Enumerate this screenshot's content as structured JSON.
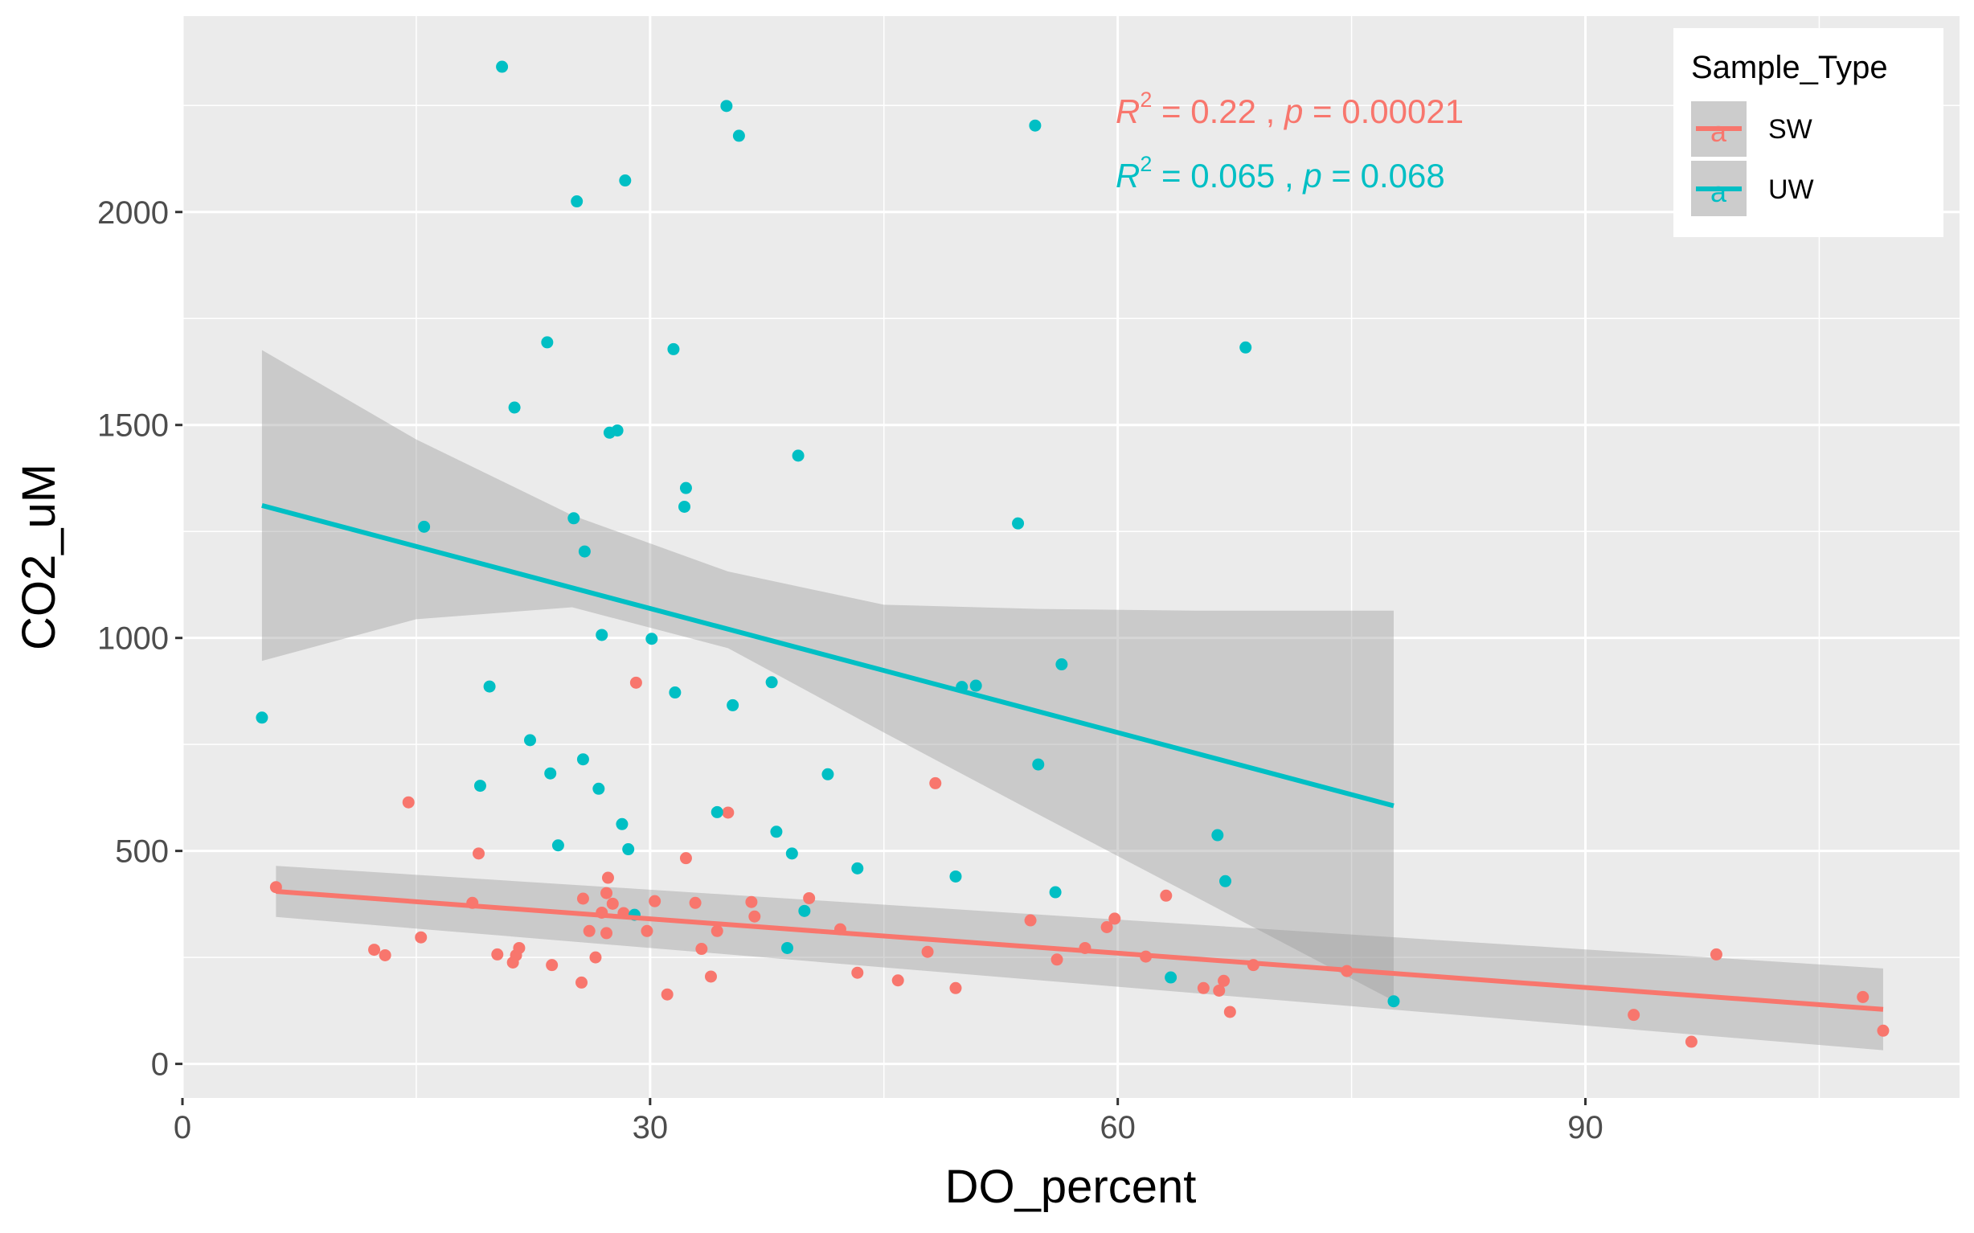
{
  "chart_data": {
    "type": "scatter",
    "xlabel": "DO_percent",
    "ylabel": "CO2_uM",
    "xlim": [
      0,
      114
    ],
    "ylim": [
      -80,
      2460
    ],
    "x_ticks": [
      0,
      30,
      60,
      90
    ],
    "y_ticks": [
      0,
      500,
      1000,
      1500,
      2000
    ],
    "x_tick_labels": [
      "0",
      "30",
      "60",
      "90"
    ],
    "y_tick_labels": [
      "0",
      "500",
      "1000",
      "1500",
      "2000"
    ],
    "grid": true,
    "legend": {
      "title": "Sample_Type",
      "placement": "top-right",
      "key_glyph": "a"
    },
    "series": [
      {
        "name": "SW",
        "color": "#F8766D",
        "points": [
          [
            6,
            415
          ],
          [
            12.3,
            268
          ],
          [
            13,
            255
          ],
          [
            14.5,
            614
          ],
          [
            15.3,
            297
          ],
          [
            18.6,
            378
          ],
          [
            19,
            494
          ],
          [
            20.2,
            257
          ],
          [
            21.2,
            238
          ],
          [
            21.4,
            255
          ],
          [
            21.6,
            272
          ],
          [
            23.7,
            232
          ],
          [
            25.6,
            191
          ],
          [
            25.7,
            388
          ],
          [
            26.1,
            312
          ],
          [
            26.5,
            250
          ],
          [
            26.9,
            355
          ],
          [
            27.2,
            307
          ],
          [
            27.2,
            401
          ],
          [
            27.3,
            437
          ],
          [
            27.6,
            376
          ],
          [
            28.3,
            354
          ],
          [
            29.1,
            895
          ],
          [
            29.8,
            312
          ],
          [
            30.3,
            382
          ],
          [
            31.1,
            163
          ],
          [
            32.3,
            483
          ],
          [
            32.9,
            378
          ],
          [
            33.3,
            270
          ],
          [
            33.9,
            205
          ],
          [
            34.3,
            312
          ],
          [
            35,
            590
          ],
          [
            36.5,
            380
          ],
          [
            36.7,
            346
          ],
          [
            40.2,
            389
          ],
          [
            42.2,
            316
          ],
          [
            43.3,
            214
          ],
          [
            45.9,
            196
          ],
          [
            47.8,
            263
          ],
          [
            48.3,
            659
          ],
          [
            49.6,
            178
          ],
          [
            54.4,
            337
          ],
          [
            56.1,
            245
          ],
          [
            57.9,
            272
          ],
          [
            59.3,
            321
          ],
          [
            59.8,
            341
          ],
          [
            61.8,
            252
          ],
          [
            63.1,
            395
          ],
          [
            65.5,
            178
          ],
          [
            66.5,
            172
          ],
          [
            66.8,
            195
          ],
          [
            67.2,
            122
          ],
          [
            68.7,
            232
          ],
          [
            74.7,
            218
          ],
          [
            93.1,
            115
          ],
          [
            96.8,
            52
          ],
          [
            98.4,
            257
          ],
          [
            107.8,
            157
          ],
          [
            109.1,
            78
          ]
        ],
        "fit": {
          "x": [
            6,
            109.1
          ],
          "y": [
            405,
            128
          ]
        },
        "ci": {
          "x": [
            6,
            109.1
          ],
          "lower": [
            345,
            32
          ],
          "upper": [
            465,
            224
          ]
        },
        "annotation": {
          "r2": "0.22",
          "p": "0.00021"
        }
      },
      {
        "name": "UW",
        "color": "#00BFC4",
        "points": [
          [
            5.1,
            813
          ],
          [
            15.5,
            1261
          ],
          [
            19.1,
            653
          ],
          [
            19.7,
            886
          ],
          [
            20.5,
            2341
          ],
          [
            21.3,
            1541
          ],
          [
            22.3,
            760
          ],
          [
            23.4,
            1694
          ],
          [
            23.6,
            682
          ],
          [
            24.1,
            513
          ],
          [
            25.1,
            1281
          ],
          [
            25.3,
            2025
          ],
          [
            25.7,
            715
          ],
          [
            25.8,
            1203
          ],
          [
            26.7,
            646
          ],
          [
            26.9,
            1007
          ],
          [
            27.4,
            1482
          ],
          [
            27.9,
            1487
          ],
          [
            28.2,
            563
          ],
          [
            28.4,
            2074
          ],
          [
            28.6,
            504
          ],
          [
            29,
            350
          ],
          [
            30.1,
            998
          ],
          [
            31.5,
            1678
          ],
          [
            31.6,
            872
          ],
          [
            32.2,
            1308
          ],
          [
            32.3,
            1352
          ],
          [
            34.3,
            591
          ],
          [
            34.9,
            2249
          ],
          [
            35.3,
            842
          ],
          [
            35.7,
            2179
          ],
          [
            37.8,
            896
          ],
          [
            38.1,
            545
          ],
          [
            38.8,
            272
          ],
          [
            39.1,
            494
          ],
          [
            39.5,
            1428
          ],
          [
            39.9,
            359
          ],
          [
            41.4,
            680
          ],
          [
            43.3,
            459
          ],
          [
            49.6,
            440
          ],
          [
            50,
            885
          ],
          [
            50.9,
            888
          ],
          [
            53.6,
            1269
          ],
          [
            54.7,
            2203
          ],
          [
            54.9,
            703
          ],
          [
            56,
            403
          ],
          [
            56.4,
            938
          ],
          [
            63.4,
            203
          ],
          [
            66.4,
            537
          ],
          [
            66.9,
            429
          ],
          [
            68.2,
            1682
          ],
          [
            77.7,
            147
          ]
        ],
        "fit": {
          "x": [
            5.1,
            77.7
          ],
          "y": [
            1311,
            606
          ]
        },
        "ci": {
          "x": [
            5.1,
            15,
            25,
            35,
            45,
            55,
            65,
            77.7
          ],
          "lower": [
            946,
            1044,
            1072,
            976,
            778,
            584,
            392,
            148
          ],
          "upper": [
            1676,
            1466,
            1288,
            1156,
            1078,
            1068,
            1064,
            1064
          ]
        },
        "annotation": {
          "r2": "0.065",
          "p": "0.068"
        }
      }
    ]
  }
}
